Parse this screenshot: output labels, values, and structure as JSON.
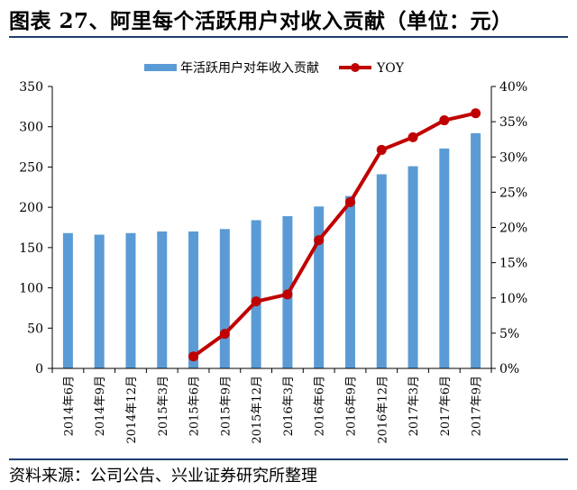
{
  "title": "图表 27、阿里每个活跃用户对收入贡献（单位：元）",
  "source": "资料来源：公司公告、兴业证券研究所整理",
  "chart_data": {
    "type": "bar",
    "categories": [
      "2014年6月",
      "2014年9月",
      "2014年12月",
      "2015年3月",
      "2015年6月",
      "2015年9月",
      "2015年12月",
      "2016年3月",
      "2016年6月",
      "2016年9月",
      "2016年12月",
      "2017年3月",
      "2017年6月",
      "2017年9月"
    ],
    "series": [
      {
        "name": "年活跃用户对年收入贡献",
        "type": "bar",
        "axis": "left",
        "color": "#5b9bd5",
        "values": [
          168,
          166,
          168,
          170,
          170,
          173,
          184,
          189,
          201,
          214,
          241,
          251,
          273,
          292
        ]
      },
      {
        "name": "YOY",
        "type": "line",
        "axis": "right",
        "color": "#c00000",
        "values": [
          null,
          null,
          null,
          null,
          0.017,
          0.049,
          0.095,
          0.105,
          0.182,
          0.236,
          0.31,
          0.328,
          0.352,
          0.362
        ]
      }
    ],
    "y_left": {
      "lim": [
        0,
        350
      ],
      "ticks": [
        0,
        50,
        100,
        150,
        200,
        250,
        300,
        350
      ]
    },
    "y_right": {
      "lim": [
        0,
        0.4
      ],
      "ticks": [
        0,
        0.05,
        0.1,
        0.15,
        0.2,
        0.25,
        0.3,
        0.35,
        0.4
      ],
      "tick_labels": [
        "0%",
        "5%",
        "10%",
        "15%",
        "20%",
        "25%",
        "30%",
        "35%",
        "40%"
      ]
    },
    "legend": {
      "position": "top",
      "items": [
        "年活跃用户对年收入贡献",
        "YOY"
      ]
    },
    "grid": false
  }
}
